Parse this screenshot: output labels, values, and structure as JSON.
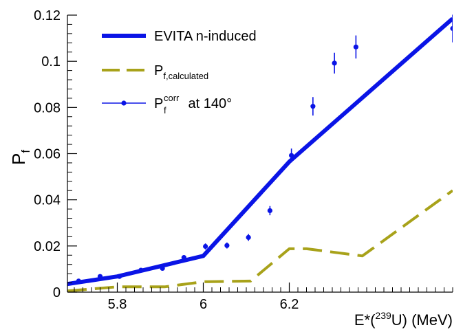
{
  "chart_data": {
    "type": "line",
    "title": "",
    "xlabel": "E*(²³⁹U) (MeV)",
    "xlabel_parts": {
      "pre": "E*(",
      "sup": "239",
      "post": "U) (MeV)"
    },
    "ylabel": "P_f",
    "ylabel_parts": {
      "main": "P",
      "sub": "f"
    },
    "xlim": [
      5.684,
      6.58
    ],
    "ylim": [
      0,
      0.12
    ],
    "x_ticks": [
      5.8,
      6.0,
      6.2
    ],
    "x_tick_labels": [
      "5.8",
      "6",
      "6.2"
    ],
    "y_ticks": [
      0,
      0.02,
      0.04,
      0.06,
      0.08,
      0.1,
      0.12
    ],
    "y_tick_labels": [
      "0",
      "0.02",
      "0.04",
      "0.06",
      "0.08",
      "0.1",
      "0.12"
    ],
    "grid": false,
    "legend_position": "top-left",
    "series": [
      {
        "name": "EVITA n-induced",
        "legend": {
          "main": "EVITA n-induced"
        },
        "style": "solid-thick",
        "color": "#0a14e6",
        "x": [
          5.684,
          5.8,
          6.0,
          6.2,
          6.58
        ],
        "y": [
          0.0035,
          0.0068,
          0.0157,
          0.0565,
          0.1185
        ]
      },
      {
        "name": "P_f,calculated",
        "legend": {
          "main": "P",
          "sub": "f,calculated"
        },
        "style": "dashed",
        "color": "#a8a21a",
        "x": [
          5.684,
          5.8,
          5.91,
          6.0,
          6.11,
          6.2,
          6.24,
          6.37,
          6.58
        ],
        "y": [
          0.0005,
          0.0023,
          0.0023,
          0.0045,
          0.0048,
          0.0188,
          0.0188,
          0.0157,
          0.044
        ]
      },
      {
        "name": "P_f^corr at 140°",
        "legend": {
          "main": "P",
          "sub": "f",
          "sup": "corr",
          "tail": " at 140°"
        },
        "style": "points-with-errors",
        "color": "#0a14e6",
        "x": [
          5.71,
          5.76,
          5.805,
          5.855,
          5.905,
          5.955,
          6.005,
          6.055,
          6.105,
          6.155,
          6.205,
          6.255,
          6.305,
          6.355,
          6.58
        ],
        "y": [
          0.0048,
          0.0068,
          0.0068,
          0.0095,
          0.0103,
          0.015,
          0.0198,
          0.0202,
          0.0237,
          0.0353,
          0.0592,
          0.0805,
          0.0992,
          0.1062,
          0.1142
        ],
        "err": [
          0.0005,
          0.0007,
          0.0007,
          0.0008,
          0.0008,
          0.001,
          0.0013,
          0.0013,
          0.0015,
          0.002,
          0.003,
          0.004,
          0.0045,
          0.005,
          0.006
        ]
      }
    ]
  }
}
